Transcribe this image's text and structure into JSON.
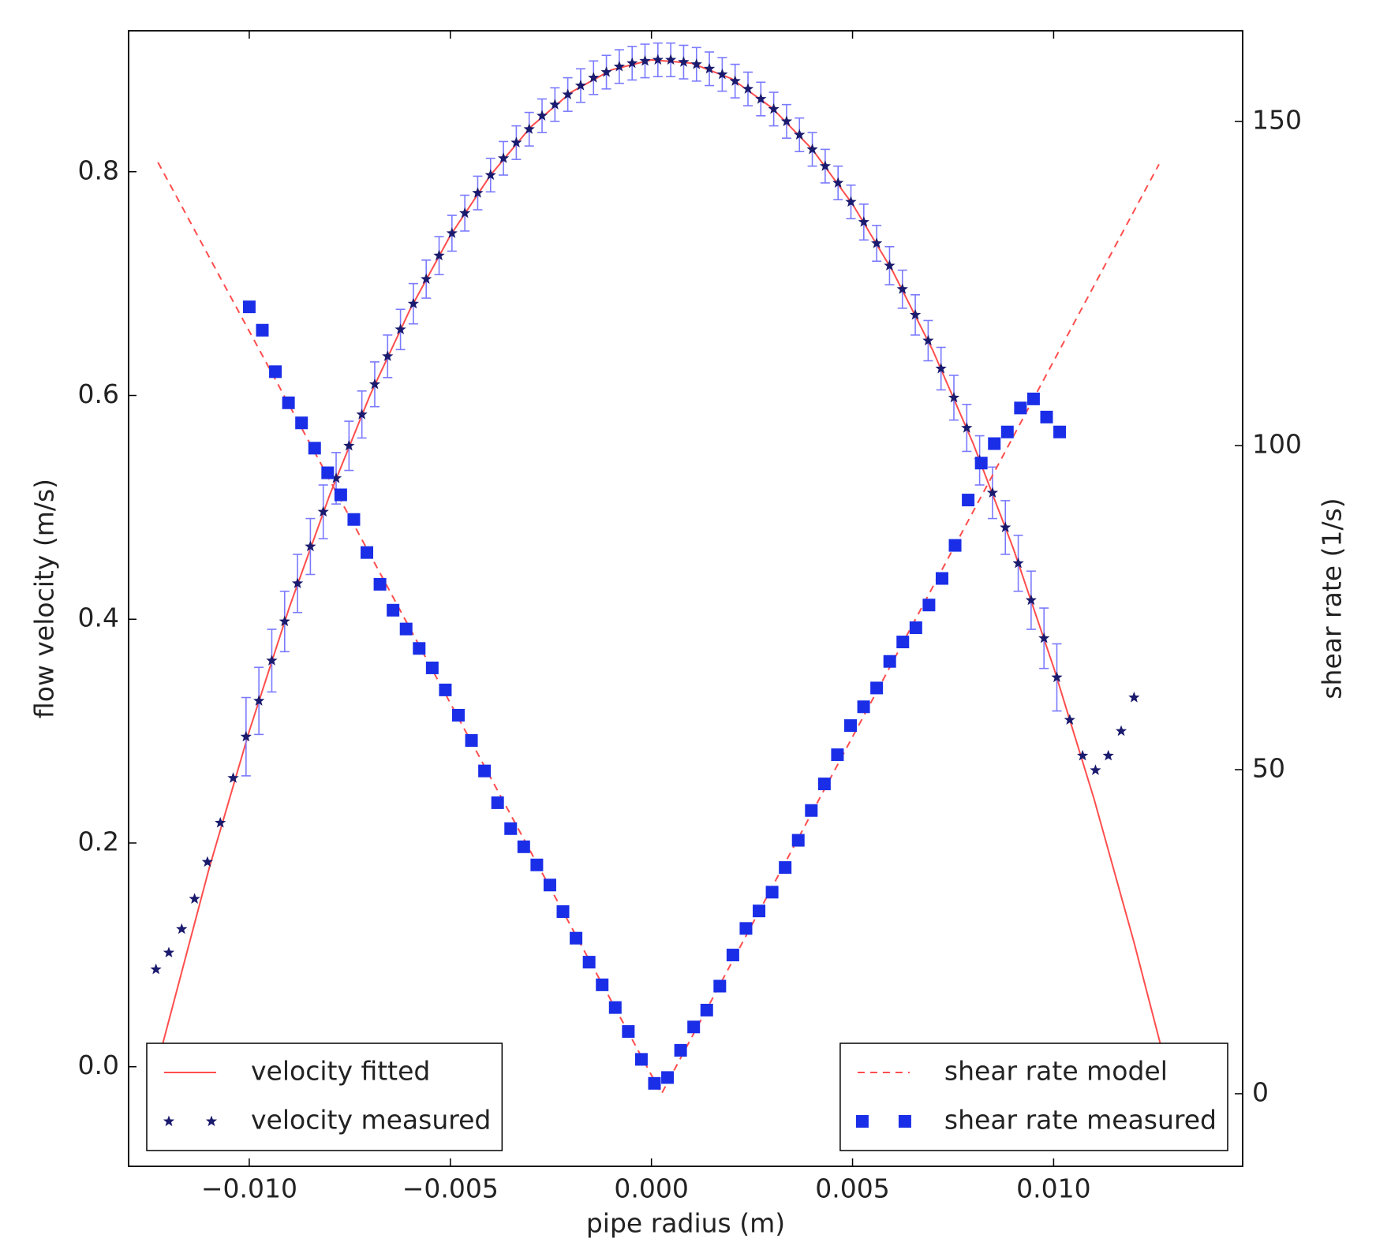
{
  "chart_data": {
    "type": "line",
    "xlabel": "pipe radius (m)",
    "ylabel": "flow velocity (m/s)",
    "y2label": "shear rate (1/s)",
    "xlim": [
      -0.013,
      0.0147
    ],
    "ylim": [
      -0.089,
      0.926
    ],
    "y2lim": [
      -11.2,
      164
    ],
    "xticks": [
      {
        "value": -0.01,
        "label": "−0.010"
      },
      {
        "value": -0.005,
        "label": "−0.005"
      },
      {
        "value": 0,
        "label": "0.000"
      },
      {
        "value": 0.005,
        "label": "0.005"
      },
      {
        "value": 0.01,
        "label": "0.010"
      }
    ],
    "yticks": [
      {
        "value": 0,
        "label": "0.0"
      },
      0.2,
      0.4,
      0.6,
      0.8
    ],
    "y2ticks": [
      0,
      50,
      100,
      150
    ],
    "grid": false,
    "series": [
      {
        "name": "velocity fitted",
        "type": "line",
        "linestyle": "solid",
        "color": "#ff4d4d",
        "legend": "lower left",
        "x": [
          -0.0122,
          -0.011,
          -0.01,
          -0.009,
          -0.008,
          -0.007,
          -0.006,
          -0.005,
          -0.004,
          -0.003,
          -0.002,
          -0.001,
          0,
          0.001,
          0.002,
          0.003,
          0.004,
          0.005,
          0.006,
          0.007,
          0.008,
          0.009,
          0.01,
          0.011,
          0.012,
          0.0127
        ],
        "values": [
          0.014,
          0.177,
          0.3,
          0.411,
          0.511,
          0.6,
          0.677,
          0.743,
          0.797,
          0.84,
          0.871,
          0.891,
          0.9,
          0.897,
          0.883,
          0.857,
          0.82,
          0.771,
          0.711,
          0.64,
          0.557,
          0.463,
          0.357,
          0.24,
          0.111,
          0.014
        ]
      },
      {
        "name": "velocity measured",
        "type": "scatter",
        "marker": "star",
        "color": "#1a1a6e",
        "error_color": "#7a7aff",
        "legend": "lower left",
        "x": [
          -0.01232,
          -0.012,
          -0.01168,
          -0.01136,
          -0.01104,
          -0.01072,
          -0.0104,
          -0.01008,
          -0.00976,
          -0.00944,
          -0.00912,
          -0.0088,
          -0.00848,
          -0.00816,
          -0.00784,
          -0.00752,
          -0.0072,
          -0.00688,
          -0.00656,
          -0.00624,
          -0.00592,
          -0.0056,
          -0.00528,
          -0.00496,
          -0.00464,
          -0.00432,
          -0.004,
          -0.00368,
          -0.00336,
          -0.00304,
          -0.00272,
          -0.0024,
          -0.00208,
          -0.00176,
          -0.00144,
          -0.00112,
          -0.0008,
          -0.00048,
          -0.00016,
          0.00016,
          0.00048,
          0.0008,
          0.00112,
          0.00144,
          0.00176,
          0.00208,
          0.0024,
          0.00272,
          0.00304,
          0.00336,
          0.00368,
          0.004,
          0.00432,
          0.00464,
          0.00496,
          0.00528,
          0.0056,
          0.00592,
          0.00624,
          0.00656,
          0.00688,
          0.0072,
          0.00752,
          0.00784,
          0.00816,
          0.00848,
          0.0088,
          0.00912,
          0.00944,
          0.00976,
          0.01008,
          0.0104,
          0.01072,
          0.01104,
          0.01136,
          0.01168,
          0.012
        ],
        "values": [
          0.087,
          0.102,
          0.123,
          0.15,
          0.183,
          0.218,
          0.258,
          0.295,
          0.327,
          0.363,
          0.398,
          0.432,
          0.465,
          0.496,
          0.526,
          0.555,
          0.583,
          0.61,
          0.635,
          0.659,
          0.682,
          0.704,
          0.725,
          0.745,
          0.763,
          0.781,
          0.797,
          0.812,
          0.826,
          0.838,
          0.85,
          0.86,
          0.869,
          0.877,
          0.884,
          0.889,
          0.894,
          0.897,
          0.899,
          0.9,
          0.9,
          0.898,
          0.896,
          0.892,
          0.887,
          0.881,
          0.874,
          0.865,
          0.856,
          0.845,
          0.833,
          0.82,
          0.805,
          0.79,
          0.773,
          0.755,
          0.736,
          0.716,
          0.695,
          0.672,
          0.649,
          0.624,
          0.598,
          0.571,
          0.542,
          0.513,
          0.482,
          0.45,
          0.417,
          0.383,
          0.348,
          0.31,
          0.278,
          0.265,
          0.278,
          0.3,
          0.33
        ],
        "errors": [
          null,
          null,
          null,
          null,
          null,
          null,
          null,
          0.035,
          0.03,
          0.028,
          0.027,
          0.026,
          0.025,
          0.024,
          0.023,
          0.022,
          0.021,
          0.02,
          0.019,
          0.018,
          0.018,
          0.017,
          0.017,
          0.016,
          0.016,
          0.015,
          0.015,
          0.015,
          0.015,
          0.015,
          0.015,
          0.015,
          0.015,
          0.015,
          0.015,
          0.015,
          0.015,
          0.015,
          0.015,
          0.015,
          0.015,
          0.015,
          0.015,
          0.015,
          0.015,
          0.015,
          0.015,
          0.015,
          0.015,
          0.015,
          0.015,
          0.015,
          0.015,
          0.015,
          0.015,
          0.016,
          0.016,
          0.017,
          0.017,
          0.018,
          0.018,
          0.019,
          0.02,
          0.021,
          0.022,
          0.023,
          0.024,
          0.025,
          0.026,
          0.027,
          0.03,
          null,
          null,
          null,
          null,
          null,
          null
        ]
      },
      {
        "name": "shear rate model",
        "type": "line",
        "linestyle": "dashed",
        "color": "#ff4d4d",
        "axis": "y2",
        "legend": "lower right",
        "x": [
          -0.01227,
          0.00025,
          0.01262
        ],
        "values": [
          143.7,
          0,
          143.4
        ]
      },
      {
        "name": "shear rate measured",
        "type": "scatter",
        "marker": "square",
        "color": "#1a2ee8",
        "axis": "y2",
        "legend": "lower right",
        "x": [
          -0.01,
          -0.009675,
          -0.00935,
          -0.009025,
          -0.0087,
          -0.008375,
          -0.00805,
          -0.007725,
          -0.0074,
          -0.007075,
          -0.00675,
          -0.006425,
          -0.0061,
          -0.005775,
          -0.00545,
          -0.005125,
          -0.0048,
          -0.004475,
          -0.00415,
          -0.003825,
          -0.0035,
          -0.003175,
          -0.00285,
          -0.002525,
          -0.0022,
          -0.001875,
          -0.00155,
          -0.001225,
          -0.0009,
          -0.000575,
          -0.00025,
          7.5e-05,
          0.0004,
          0.000725,
          0.00105,
          0.001375,
          0.0017,
          0.002025,
          0.00235,
          0.002675,
          0.003,
          0.003325,
          0.00365,
          0.003975,
          0.0043,
          0.004625,
          0.00495,
          0.005275,
          0.0056,
          0.005925,
          0.00625,
          0.006575,
          0.0069,
          0.007225,
          0.00755,
          0.007875,
          0.0082,
          0.008525,
          0.00885,
          0.009175,
          0.0095,
          0.009825,
          0.01015
        ],
        "values": [
          121.4,
          117.8,
          111.4,
          106.6,
          103.5,
          99.6,
          95.8,
          92.4,
          88.6,
          83.5,
          78.6,
          74.6,
          71.7,
          68.7,
          65.7,
          62.3,
          58.4,
          54.5,
          49.8,
          44.9,
          40.9,
          38.1,
          35.3,
          32.2,
          28.1,
          24.0,
          20.3,
          16.8,
          13.3,
          9.6,
          5.3,
          1.6,
          2.5,
          6.7,
          10.3,
          12.9,
          16.6,
          21.4,
          25.5,
          28.2,
          31.1,
          34.9,
          39.1,
          43.7,
          47.8,
          52.3,
          56.8,
          59.7,
          62.6,
          66.7,
          69.7,
          71.9,
          75.4,
          79.5,
          84.6,
          91.6,
          97.3,
          100.3,
          102.1,
          105.8,
          107.2,
          104.4,
          102.1
        ]
      }
    ]
  }
}
